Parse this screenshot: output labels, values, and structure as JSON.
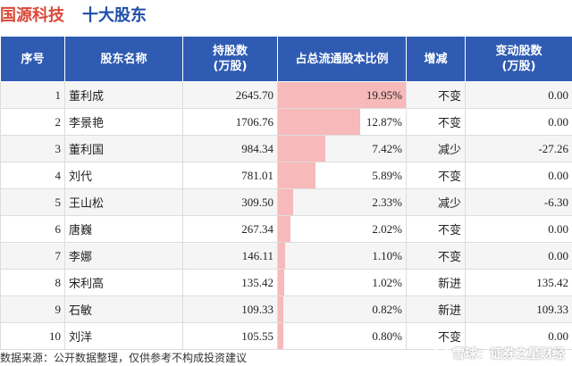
{
  "header": {
    "company": "国源科技",
    "subtitle": "十大股东"
  },
  "columns": {
    "index": "序号",
    "name": "股东名称",
    "shares_line1": "持股数",
    "shares_line2": "(万股)",
    "ratio": "占总流通股本比例",
    "change": "增减",
    "delta_line1": "变动股数",
    "delta_line2": "(万股)"
  },
  "colors": {
    "header_bg": "#2f5bb3",
    "bar": "#f7b9b9",
    "up": "#e02020",
    "down": "#2a9d3a",
    "company": "#d94a3a"
  },
  "rows": [
    {
      "index": "1",
      "name": "董利成",
      "shares": "2645.70",
      "ratio": "19.95%",
      "ratio_value": 19.95,
      "change": "不变",
      "change_type": "unchanged",
      "delta": "0.00"
    },
    {
      "index": "2",
      "name": "李景艳",
      "shares": "1706.76",
      "ratio": "12.87%",
      "ratio_value": 12.87,
      "change": "不变",
      "change_type": "unchanged",
      "delta": "0.00"
    },
    {
      "index": "3",
      "name": "董利国",
      "shares": "984.34",
      "ratio": "7.42%",
      "ratio_value": 7.42,
      "change": "减少",
      "change_type": "down",
      "delta": "-27.26"
    },
    {
      "index": "4",
      "name": "刘代",
      "shares": "781.01",
      "ratio": "5.89%",
      "ratio_value": 5.89,
      "change": "不变",
      "change_type": "unchanged",
      "delta": "0.00"
    },
    {
      "index": "5",
      "name": "王山松",
      "shares": "309.50",
      "ratio": "2.33%",
      "ratio_value": 2.33,
      "change": "减少",
      "change_type": "down",
      "delta": "-6.30"
    },
    {
      "index": "6",
      "name": "唐巍",
      "shares": "267.34",
      "ratio": "2.02%",
      "ratio_value": 2.02,
      "change": "不变",
      "change_type": "unchanged",
      "delta": "0.00"
    },
    {
      "index": "7",
      "name": "李娜",
      "shares": "146.11",
      "ratio": "1.10%",
      "ratio_value": 1.1,
      "change": "不变",
      "change_type": "unchanged",
      "delta": "0.00"
    },
    {
      "index": "8",
      "name": "宋利高",
      "shares": "135.42",
      "ratio": "1.02%",
      "ratio_value": 1.02,
      "change": "新进",
      "change_type": "new",
      "delta": "135.42"
    },
    {
      "index": "9",
      "name": "石敏",
      "shares": "109.33",
      "ratio": "0.82%",
      "ratio_value": 0.82,
      "change": "新进",
      "change_type": "new",
      "delta": "109.33"
    },
    {
      "index": "10",
      "name": "刘洋",
      "shares": "105.55",
      "ratio": "0.80%",
      "ratio_value": 0.8,
      "change": "不变",
      "change_type": "unchanged",
      "delta": "0.00"
    }
  ],
  "footer": {
    "source": "数据来源：公开数据整理，仅供参考不构成投资建议"
  },
  "brand": {
    "icon": "snowball-icon",
    "text": "雪球：证券之星财经"
  }
}
